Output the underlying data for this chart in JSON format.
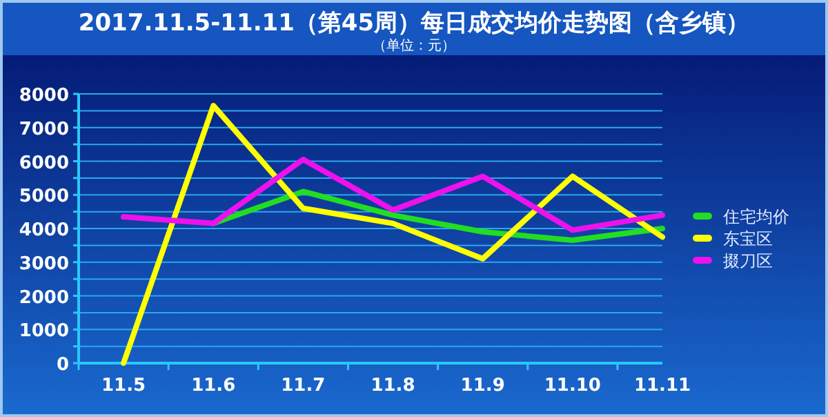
{
  "chart_data": {
    "type": "line",
    "title": "2017.11.5-11.11（第45周）每日成交均价走势图（含乡镇）",
    "subtitle": "（单位：元）",
    "categories": [
      "11.5",
      "11.6",
      "11.7",
      "11.8",
      "11.9",
      "11.10",
      "11.11"
    ],
    "series": [
      {
        "name": "住宅均价",
        "color": "#22dd22",
        "values": [
          null,
          4150,
          5100,
          4400,
          3900,
          3650,
          4000
        ]
      },
      {
        "name": "东宝区",
        "color": "#ffff00",
        "values": [
          0,
          7650,
          4600,
          4150,
          3100,
          5550,
          3750
        ]
      },
      {
        "name": "掇刀区",
        "color": "#ee11ee",
        "values": [
          4350,
          4150,
          6050,
          4550,
          5550,
          3950,
          4400
        ]
      }
    ],
    "ylim": [
      0,
      8000
    ],
    "yticks": [
      0,
      {
        "value": 500,
        "label": null
      },
      1000,
      {
        "value": 1500,
        "label": null
      },
      2000,
      {
        "value": 2500,
        "label": null
      },
      3000,
      {
        "value": 3500,
        "label": null
      },
      4000,
      {
        "value": 4500,
        "label": null
      },
      5000,
      {
        "value": 5500,
        "label": null
      },
      6000,
      {
        "value": 6500,
        "label": null
      },
      7000,
      {
        "value": 7500,
        "label": null
      },
      8000
    ],
    "grid": "y",
    "legend": "right",
    "marker": "none",
    "line_style": "solid"
  }
}
